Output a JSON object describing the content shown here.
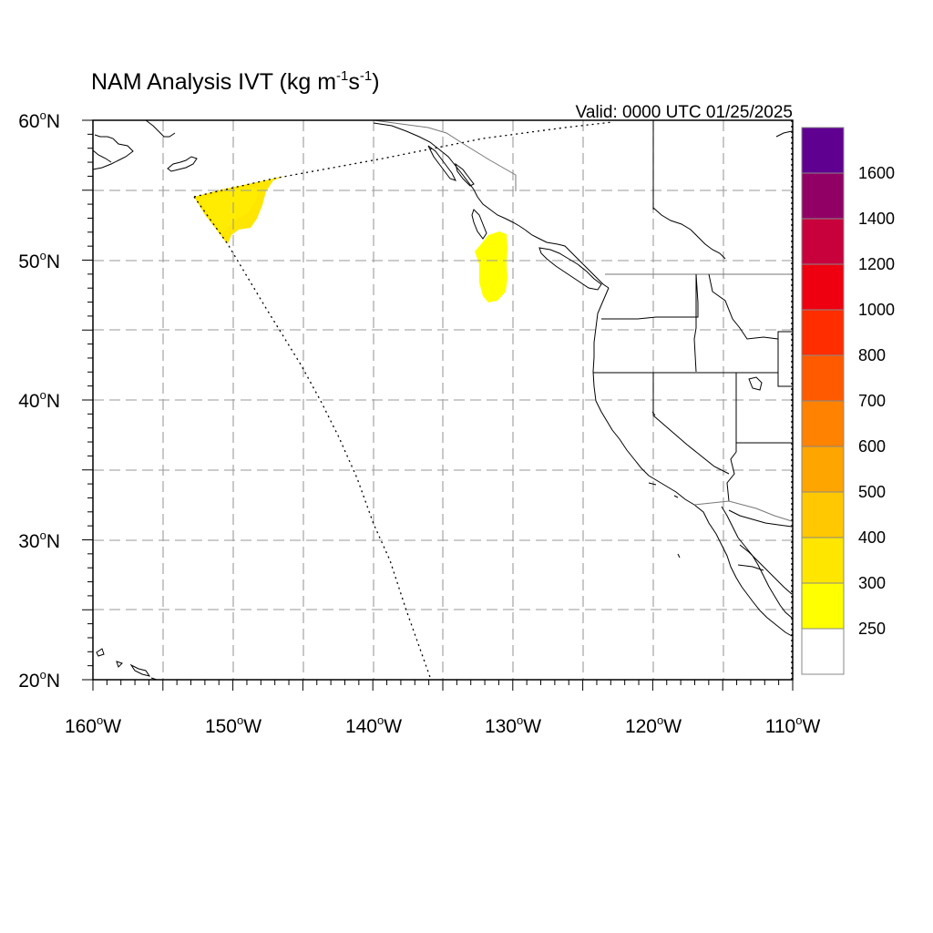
{
  "title": {
    "main": "NAM Analysis IVT (kg m",
    "sup1": "-1",
    "mid": "s",
    "sup2": "-1",
    "end": ")"
  },
  "valid_label": "Valid: 0000 UTC 01/25/2025",
  "map": {
    "lon_range": [
      -160,
      -110
    ],
    "lat_range": [
      20,
      60
    ],
    "lon_ticks": [
      {
        "value": -160,
        "num": "160",
        "sup": "o",
        "hem": "W"
      },
      {
        "value": -150,
        "num": "150",
        "sup": "o",
        "hem": "W"
      },
      {
        "value": -140,
        "num": "140",
        "sup": "o",
        "hem": "W"
      },
      {
        "value": -130,
        "num": "130",
        "sup": "o",
        "hem": "W"
      },
      {
        "value": -120,
        "num": "120",
        "sup": "o",
        "hem": "W"
      },
      {
        "value": -110,
        "num": "110",
        "sup": "o",
        "hem": "W"
      }
    ],
    "lat_ticks": [
      {
        "value": 60,
        "num": "60",
        "sup": "o",
        "hem": "N"
      },
      {
        "value": 50,
        "num": "50",
        "sup": "o",
        "hem": "N"
      },
      {
        "value": 40,
        "num": "40",
        "sup": "o",
        "hem": "N"
      },
      {
        "value": 30,
        "num": "30",
        "sup": "o",
        "hem": "N"
      },
      {
        "value": 20,
        "num": "20",
        "sup": "o",
        "hem": "N"
      }
    ],
    "grid_lons": [
      -155,
      -150,
      -145,
      -140,
      -135,
      -130,
      -125,
      -120,
      -115
    ],
    "grid_lats": [
      25,
      30,
      35,
      40,
      45,
      50,
      55
    ],
    "grid_style": "dashed gray"
  },
  "colorbar": {
    "levels": [
      {
        "label": "250",
        "color": "#ffff00"
      },
      {
        "label": "300",
        "color": "#ffe600"
      },
      {
        "label": "400",
        "color": "#ffc800"
      },
      {
        "label": "500",
        "color": "#ffa500"
      },
      {
        "label": "600",
        "color": "#ff8200"
      },
      {
        "label": "700",
        "color": "#ff5a00"
      },
      {
        "label": "800",
        "color": "#ff2d00"
      },
      {
        "label": "1000",
        "color": "#ee0010"
      },
      {
        "label": "1200",
        "color": "#c8003c"
      },
      {
        "label": "1400",
        "color": "#910064"
      },
      {
        "label": "1600",
        "color": "#5f0091"
      }
    ],
    "below_min_color": "#ffffff"
  },
  "ivt_features": [
    {
      "name": "gulf-of-alaska-plume",
      "level": "300"
    },
    {
      "name": "offshore-bc-plume",
      "level": "250"
    }
  ]
}
